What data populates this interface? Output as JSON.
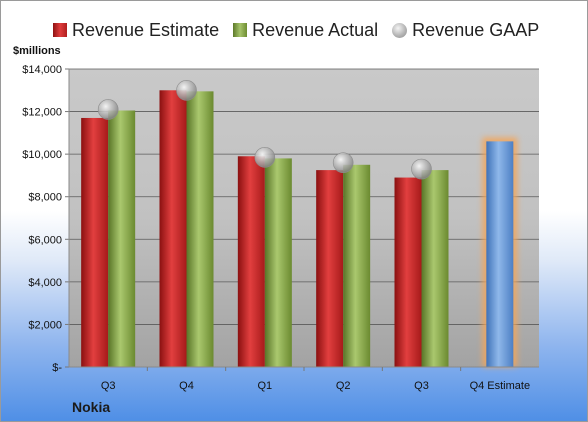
{
  "legend": {
    "estimate": "Revenue Estimate",
    "actual": "Revenue Actual",
    "gaap": "Revenue GAAP"
  },
  "unit_label": "$millions",
  "company": "Nokia",
  "colors": {
    "estimate": "#c8292b",
    "actual": "#8cac51",
    "gaap": "#b8b8b8",
    "forecast": "#6e9fd8",
    "forecast_glow": "#f3a55a"
  },
  "chart_data": {
    "type": "bar",
    "categories": [
      "Q3",
      "Q4",
      "Q1",
      "Q2",
      "Q3",
      "Q4 Estimate"
    ],
    "ylabel": "$millions",
    "ylim": [
      0,
      14000
    ],
    "yticks": [
      0,
      2000,
      4000,
      6000,
      8000,
      10000,
      12000,
      14000
    ],
    "ytick_labels": [
      "$-",
      "$2,000",
      "$4,000",
      "$6,000",
      "$8,000",
      "$10,000",
      "$12,000",
      "$14,000"
    ],
    "grid": true,
    "legend_position": "top",
    "series": [
      {
        "name": "Revenue Estimate",
        "type": "bar",
        "values": [
          11700,
          13000,
          9900,
          9250,
          8900,
          null
        ]
      },
      {
        "name": "Revenue Actual",
        "type": "bar",
        "values": [
          12050,
          12950,
          9800,
          9500,
          9250,
          null
        ]
      },
      {
        "name": "Revenue GAAP",
        "type": "marker",
        "values": [
          12100,
          13000,
          9850,
          9600,
          9300,
          null
        ]
      },
      {
        "name": "Q4 Estimate",
        "type": "bar",
        "values": [
          null,
          null,
          null,
          null,
          null,
          10600
        ]
      }
    ]
  }
}
